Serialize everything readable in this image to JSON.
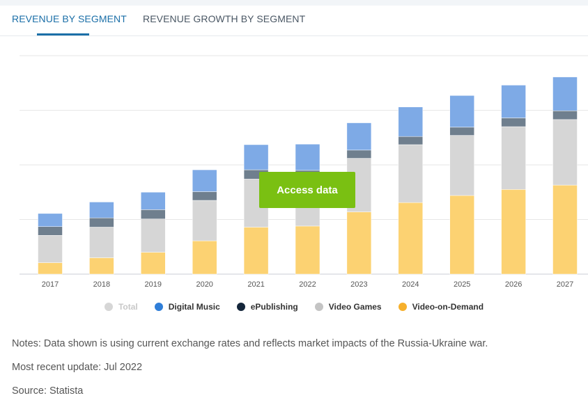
{
  "tabs": [
    {
      "label": "REVENUE BY SEGMENT",
      "active": true
    },
    {
      "label": "REVENUE GROWTH BY SEGMENT",
      "active": false
    }
  ],
  "access_button": "Access data",
  "legend": [
    {
      "name": "Total",
      "color": "#d6d6d6",
      "muted": true
    },
    {
      "name": "Digital Music",
      "color": "#2f7ed8",
      "muted": false
    },
    {
      "name": "ePublishing",
      "color": "#14263a",
      "muted": false
    },
    {
      "name": "Video Games",
      "color": "#c4c4c4",
      "muted": false
    },
    {
      "name": "Video-on-Demand",
      "color": "#f6b02c",
      "muted": false
    }
  ],
  "notes": {
    "line1": "Notes: Data shown is using current exchange rates and reflects market impacts of the Russia-Ukraine war.",
    "line2": "Most recent update: Jul 2022",
    "line3": "Source: Statista"
  },
  "chart_data": {
    "type": "bar",
    "stacked": true,
    "categories": [
      "2017",
      "2018",
      "2019",
      "2020",
      "2021",
      "2022",
      "2023",
      "2024",
      "2025",
      "2026",
      "2027"
    ],
    "series": [
      {
        "name": "Video-on-Demand",
        "color": "#fcd272",
        "values": [
          0.21,
          0.3,
          0.4,
          0.61,
          0.86,
          0.88,
          1.14,
          1.31,
          1.44,
          1.55,
          1.63
        ]
      },
      {
        "name": "Video Games",
        "color": "#d6d6d6",
        "values": [
          0.5,
          0.56,
          0.61,
          0.74,
          0.88,
          0.85,
          0.98,
          1.06,
          1.1,
          1.15,
          1.2
        ]
      },
      {
        "name": "ePublishing",
        "color": "#6f7f8e",
        "values": [
          0.16,
          0.17,
          0.17,
          0.16,
          0.17,
          0.17,
          0.15,
          0.15,
          0.15,
          0.16,
          0.16
        ]
      },
      {
        "name": "Digital Music",
        "color": "#7eaae6",
        "values": [
          0.24,
          0.29,
          0.32,
          0.4,
          0.46,
          0.48,
          0.5,
          0.54,
          0.58,
          0.6,
          0.62
        ]
      }
    ],
    "ylim": [
      0,
      4
    ],
    "grid": true,
    "legend_position": "bottom"
  }
}
